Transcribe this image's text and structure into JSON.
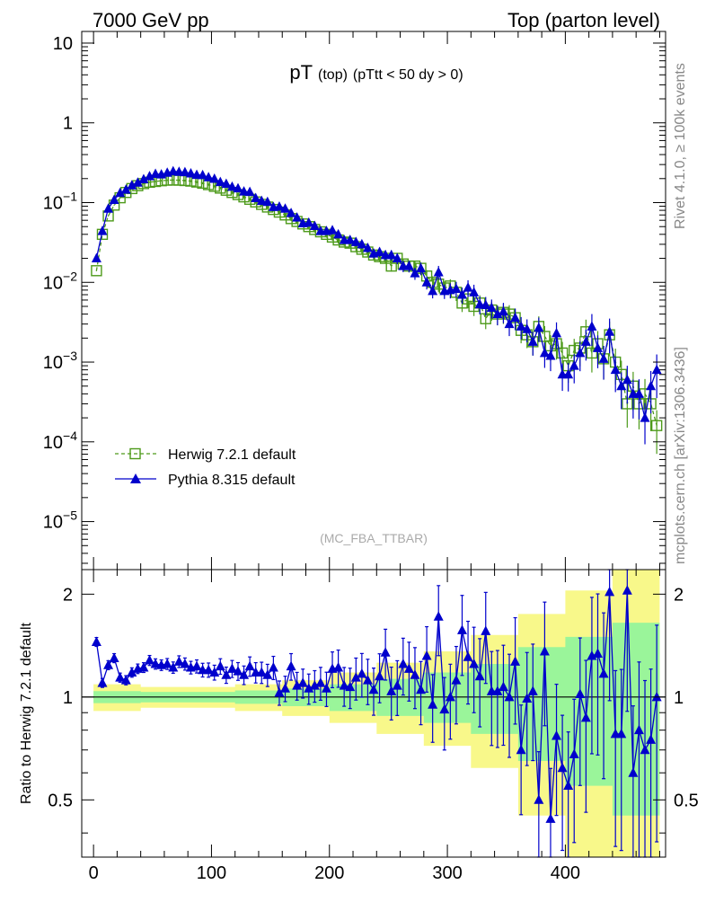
{
  "header": {
    "left": "7000 GeV pp",
    "right": "Top (parton level)"
  },
  "side": {
    "rivet": "Rivet 4.1.0, ≥ 100k events",
    "mcplots": "mcplots.cern.ch [arXiv:1306.3436]"
  },
  "colors": {
    "herwig": "#4d9a1a",
    "pythia": "#0000cc",
    "band_inner": "#9af59a",
    "band_outer": "#f8f88a"
  },
  "chart_data": [
    {
      "type": "line",
      "title": "pT",
      "title_sub1": "(top)",
      "title_sub2": "(pTtt < 50 dy > 0)",
      "analysis": "(MC_FBA_TTBAR)",
      "xlabel": "",
      "ylabel": "",
      "yscale": "log",
      "xlim": [
        -10,
        485
      ],
      "ylim": [
        2.5e-06,
        14
      ],
      "yticks": [
        {
          "v": 10,
          "label": "10"
        },
        {
          "v": 1,
          "label": "1"
        },
        {
          "v": 0.1,
          "base": "10",
          "exp": "−1"
        },
        {
          "v": 0.01,
          "base": "10",
          "exp": "−2"
        },
        {
          "v": 0.001,
          "base": "10",
          "exp": "−3"
        },
        {
          "v": 0.0001,
          "base": "10",
          "exp": "−4"
        },
        {
          "v": 1e-05,
          "base": "10",
          "exp": "−5"
        }
      ],
      "series": [
        {
          "name": "Herwig 7.2.1 default",
          "marker": "open-square",
          "x": [
            2.5,
            7.5,
            12.5,
            17.5,
            22.5,
            27.5,
            32.5,
            37.5,
            42.5,
            47.5,
            52.5,
            57.5,
            62.5,
            67.5,
            72.5,
            77.5,
            82.5,
            87.5,
            92.5,
            97.5,
            102.5,
            107.5,
            112.5,
            117.5,
            122.5,
            127.5,
            132.5,
            137.5,
            142.5,
            147.5,
            152.5,
            157.5,
            162.5,
            167.5,
            172.5,
            177.5,
            182.5,
            187.5,
            192.5,
            197.5,
            202.5,
            207.5,
            212.5,
            217.5,
            222.5,
            227.5,
            232.5,
            237.5,
            242.5,
            247.5,
            252.5,
            257.5,
            262.5,
            267.5,
            272.5,
            277.5,
            282.5,
            287.5,
            292.5,
            297.5,
            302.5,
            307.5,
            312.5,
            317.5,
            322.5,
            327.5,
            332.5,
            337.5,
            342.5,
            347.5,
            352.5,
            357.5,
            362.5,
            367.5,
            372.5,
            377.5,
            382.5,
            387.5,
            392.5,
            397.5,
            402.5,
            407.5,
            412.5,
            417.5,
            422.5,
            427.5,
            432.5,
            437.5,
            442.5,
            447.5,
            452.5,
            457.5,
            462.5,
            467.5,
            472.5,
            477.5
          ],
          "values": [
            0.014,
            0.04,
            0.068,
            0.093,
            0.115,
            0.134,
            0.15,
            0.163,
            0.173,
            0.18,
            0.184,
            0.188,
            0.191,
            0.192,
            0.191,
            0.189,
            0.186,
            0.181,
            0.175,
            0.168,
            0.16,
            0.152,
            0.143,
            0.134,
            0.126,
            0.118,
            0.11,
            0.102,
            0.095,
            0.088,
            0.082,
            0.076,
            0.07,
            0.063,
            0.058,
            0.054,
            0.05,
            0.046,
            0.043,
            0.04,
            0.037,
            0.034,
            0.032,
            0.031,
            0.028,
            0.026,
            0.024,
            0.022,
            0.021,
            0.02,
            0.016,
            0.02,
            0.017,
            0.016,
            0.016,
            0.015,
            0.012,
            0.01,
            0.0095,
            0.0085,
            0.009,
            0.0075,
            0.0055,
            0.0062,
            0.005,
            0.0055,
            0.0035,
            0.0045,
            0.004,
            0.0042,
            0.004,
            0.0036,
            0.0025,
            0.0022,
            0.0018,
            0.0028,
            0.0021,
            0.0016,
            0.0017,
            0.0013,
            0.0009,
            0.0014,
            0.0015,
            0.0024,
            0.0013,
            0.0017,
            0.0011,
            0.0022,
            0.001,
            0.0007,
            0.0003,
            0.0005,
            0.0003,
            0.0004,
            0.0003,
            0.00016
          ]
        },
        {
          "name": "Pythia 8.315 default",
          "marker": "filled-triangle",
          "x": [
            2.5,
            7.5,
            12.5,
            17.5,
            22.5,
            27.5,
            32.5,
            37.5,
            42.5,
            47.5,
            52.5,
            57.5,
            62.5,
            67.5,
            72.5,
            77.5,
            82.5,
            87.5,
            92.5,
            97.5,
            102.5,
            107.5,
            112.5,
            117.5,
            122.5,
            127.5,
            132.5,
            137.5,
            142.5,
            147.5,
            152.5,
            157.5,
            162.5,
            167.5,
            172.5,
            177.5,
            182.5,
            187.5,
            192.5,
            197.5,
            202.5,
            207.5,
            212.5,
            217.5,
            222.5,
            227.5,
            232.5,
            237.5,
            242.5,
            247.5,
            252.5,
            257.5,
            262.5,
            267.5,
            272.5,
            277.5,
            282.5,
            287.5,
            292.5,
            297.5,
            302.5,
            307.5,
            312.5,
            317.5,
            322.5,
            327.5,
            332.5,
            337.5,
            342.5,
            347.5,
            352.5,
            357.5,
            362.5,
            367.5,
            372.5,
            377.5,
            382.5,
            387.5,
            392.5,
            397.5,
            402.5,
            407.5,
            412.5,
            417.5,
            422.5,
            427.5,
            432.5,
            437.5,
            442.5,
            447.5,
            452.5,
            457.5,
            462.5,
            467.5,
            472.5,
            477.5
          ],
          "values": [
            0.02,
            0.044,
            0.084,
            0.108,
            0.132,
            0.145,
            0.165,
            0.178,
            0.196,
            0.214,
            0.229,
            0.226,
            0.237,
            0.247,
            0.243,
            0.241,
            0.232,
            0.223,
            0.221,
            0.208,
            0.199,
            0.181,
            0.172,
            0.158,
            0.151,
            0.138,
            0.136,
            0.114,
            0.105,
            0.102,
            0.088,
            0.089,
            0.084,
            0.074,
            0.065,
            0.055,
            0.056,
            0.051,
            0.044,
            0.044,
            0.045,
            0.04,
            0.034,
            0.034,
            0.032,
            0.03,
            0.027,
            0.023,
            0.024,
            0.022,
            0.022,
            0.02,
            0.016,
            0.016,
            0.013,
            0.015,
            0.01,
            0.0078,
            0.0134,
            0.0078,
            0.008,
            0.0083,
            0.007,
            0.0086,
            0.0075,
            0.0053,
            0.0052,
            0.0048,
            0.004,
            0.0043,
            0.003,
            0.0036,
            0.0028,
            0.0026,
            0.0018,
            0.0027,
            0.0013,
            0.0012,
            0.0023,
            0.0007,
            0.0007,
            0.0009,
            0.0013,
            0.0018,
            0.0028,
            0.0015,
            0.0011,
            0.0024,
            0.0008,
            0.0005,
            0.0006,
            0.0004,
            0.0004,
            0.0002,
            0.0005,
            0.0008
          ]
        }
      ]
    },
    {
      "type": "line",
      "title": "",
      "ylabel": "Ratio to Herwig 7.2.1 default",
      "xlabel": "",
      "xlim": [
        -10,
        485
      ],
      "ylim": [
        0.34,
        2.36
      ],
      "xticks": [
        0,
        100,
        200,
        300,
        400
      ],
      "yticks": [
        0.5,
        1,
        2
      ],
      "band_edges": [
        0,
        40,
        80,
        120,
        160,
        200,
        240,
        280,
        320,
        360,
        400,
        440,
        480
      ],
      "band_inner_lo": [
        0.96,
        0.965,
        0.965,
        0.955,
        0.94,
        0.91,
        0.88,
        0.84,
        0.78,
        0.65,
        0.55,
        0.45
      ],
      "band_inner_hi": [
        1.04,
        1.035,
        1.035,
        1.045,
        1.06,
        1.09,
        1.13,
        1.18,
        1.25,
        1.4,
        1.5,
        1.65
      ],
      "band_outer_lo": [
        0.91,
        0.93,
        0.93,
        0.91,
        0.88,
        0.84,
        0.78,
        0.72,
        0.62,
        0.45,
        0.32,
        0.28
      ],
      "band_outer_hi": [
        1.09,
        1.07,
        1.07,
        1.09,
        1.12,
        1.18,
        1.26,
        1.36,
        1.52,
        1.75,
        2.05,
        2.4
      ],
      "series": [
        {
          "name": "Pythia 8.315 default / Herwig 7.2.1 default",
          "marker": "filled-triangle",
          "x": [
            2.5,
            7.5,
            12.5,
            17.5,
            22.5,
            27.5,
            32.5,
            37.5,
            42.5,
            47.5,
            52.5,
            57.5,
            62.5,
            67.5,
            72.5,
            77.5,
            82.5,
            87.5,
            92.5,
            97.5,
            102.5,
            107.5,
            112.5,
            117.5,
            122.5,
            127.5,
            132.5,
            137.5,
            142.5,
            147.5,
            152.5,
            157.5,
            162.5,
            167.5,
            172.5,
            177.5,
            182.5,
            187.5,
            192.5,
            197.5,
            202.5,
            207.5,
            212.5,
            217.5,
            222.5,
            227.5,
            232.5,
            237.5,
            242.5,
            247.5,
            252.5,
            257.5,
            262.5,
            267.5,
            272.5,
            277.5,
            282.5,
            287.5,
            292.5,
            297.5,
            302.5,
            307.5,
            312.5,
            317.5,
            322.5,
            327.5,
            332.5,
            337.5,
            342.5,
            347.5,
            352.5,
            357.5,
            362.5,
            367.5,
            372.5,
            377.5,
            382.5,
            387.5,
            392.5,
            397.5,
            402.5,
            407.5,
            412.5,
            417.5,
            422.5,
            427.5,
            432.5,
            437.5,
            442.5,
            447.5,
            452.5,
            457.5,
            462.5,
            467.5,
            472.5,
            477.5
          ],
          "values": [
            1.45,
            1.1,
            1.24,
            1.3,
            1.14,
            1.12,
            1.18,
            1.21,
            1.22,
            1.28,
            1.25,
            1.24,
            1.25,
            1.22,
            1.27,
            1.25,
            1.22,
            1.23,
            1.2,
            1.2,
            1.18,
            1.23,
            1.16,
            1.21,
            1.19,
            1.16,
            1.23,
            1.18,
            1.18,
            1.16,
            1.22,
            1.03,
            1.06,
            1.23,
            1.08,
            1.1,
            1.06,
            1.08,
            1.1,
            1.06,
            1.21,
            1.22,
            1.08,
            1.07,
            1.14,
            1.17,
            1.12,
            1.05,
            1.15,
            1.35,
            1.04,
            1.08,
            1.25,
            1.21,
            1.16,
            1.05,
            1.32,
            0.95,
            1.72,
            0.92,
            1.0,
            1.12,
            1.57,
            1.31,
            1.25,
            1.15,
            1.56,
            1.04,
            1.04,
            1.07,
            1.0,
            1.27,
            0.7,
            0.99,
            1.04,
            0.5,
            1.36,
            0.44,
            0.77,
            0.62,
            0.55,
            0.68,
            1.02,
            0.87,
            1.32,
            1.34,
            1.17,
            2.03,
            0.78,
            0.78,
            2.05,
            0.6,
            0.8,
            0.7,
            0.75,
            1.0
          ]
        }
      ]
    }
  ]
}
